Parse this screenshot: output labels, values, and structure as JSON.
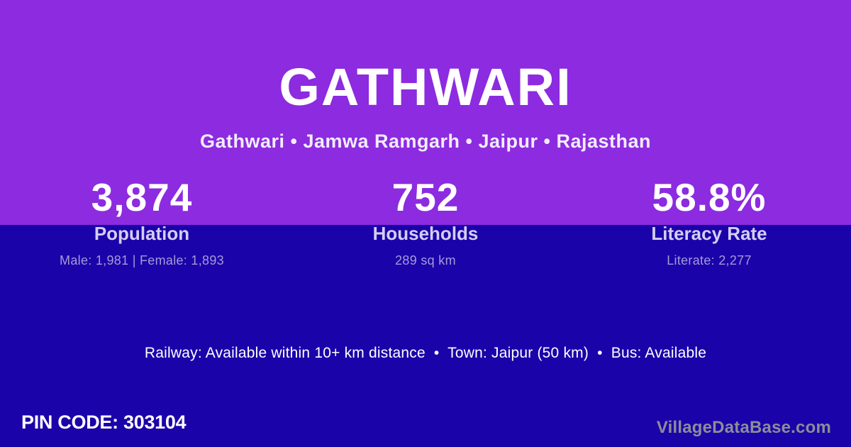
{
  "colors": {
    "purple": "#8c2be0",
    "indigo": "#1a04a9"
  },
  "header": {
    "title": "GATHWARI",
    "breadcrumb": "Gathwari • Jamwa Ramgarh • Jaipur • Rajasthan"
  },
  "stats": [
    {
      "value": "3,874",
      "label": "Population",
      "detail": "Male: 1,981 | Female: 1,893"
    },
    {
      "value": "752",
      "label": "Households",
      "detail": "289 sq km"
    },
    {
      "value": "58.8%",
      "label": "Literacy Rate",
      "detail": "Literate: 2,277"
    }
  ],
  "amenities": {
    "text": "Railway: Available within 10+ km distance  •  Town: Jaipur (50 km)  •  Bus: Available"
  },
  "footer": {
    "pin_code": "PIN CODE: 303104",
    "brand": "VillageDataBase.com"
  }
}
